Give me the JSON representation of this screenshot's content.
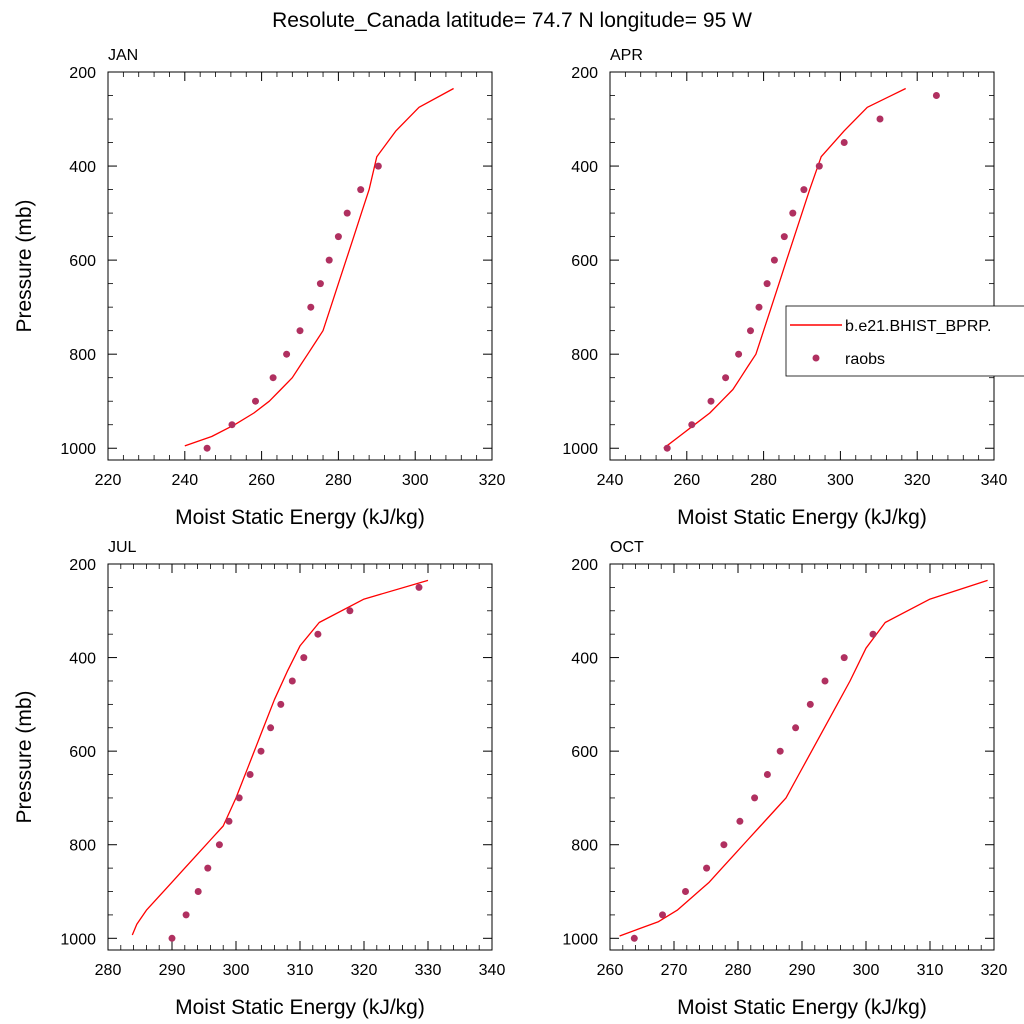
{
  "figure": {
    "title": "Resolute_Canada  latitude= 74.7 N longitude= 95 W"
  },
  "legend": {
    "entries": [
      {
        "label": "b.e21.BHIST_BPRP.",
        "kind": "line",
        "color": "#ff0000"
      },
      {
        "label": "raobs",
        "kind": "marker",
        "color": "#b03060"
      }
    ]
  },
  "colors": {
    "model_line": "#ff0000",
    "raobs_marker": "#b03060",
    "axis": "#000000"
  },
  "chart_data": [
    {
      "type": "line",
      "title": "JAN",
      "xlabel": "Moist Static Energy (kJ/kg)",
      "ylabel": "Pressure (mb)",
      "xlim": [
        220,
        320
      ],
      "ylim": [
        1025,
        200
      ],
      "xticks": [
        220,
        240,
        260,
        280,
        300,
        320
      ],
      "yticks": [
        200,
        400,
        600,
        800,
        1000
      ],
      "grid": false,
      "series": [
        {
          "name": "b.e21.BHIST_BPRP.",
          "kind": "line",
          "x": [
            240,
            247,
            253,
            258,
            262,
            265,
            268,
            270,
            272,
            274,
            276,
            278,
            280,
            282,
            284,
            286,
            288,
            290,
            295,
            301,
            310
          ],
          "y": [
            995,
            975,
            950,
            925,
            900,
            875,
            850,
            825,
            800,
            775,
            750,
            700,
            650,
            600,
            550,
            500,
            450,
            380,
            325,
            275,
            235
          ]
        },
        {
          "name": "raobs",
          "kind": "scatter",
          "x": [
            245.8,
            252.3,
            258.4,
            263,
            266.5,
            270,
            272.8,
            275.3,
            277.6,
            280,
            282.3,
            285.8,
            290.4
          ],
          "y": [
            1000,
            950,
            900,
            850,
            800,
            750,
            700,
            650,
            600,
            550,
            500,
            450,
            400
          ]
        }
      ]
    },
    {
      "type": "line",
      "title": "APR",
      "xlabel": "Moist Static Energy (kJ/kg)",
      "ylabel": "",
      "xlim": [
        240,
        340
      ],
      "ylim": [
        1025,
        200
      ],
      "xticks": [
        240,
        260,
        280,
        300,
        320,
        340
      ],
      "yticks": [
        200,
        400,
        600,
        800,
        1000
      ],
      "grid": false,
      "series": [
        {
          "name": "b.e21.BHIST_BPRP.",
          "kind": "line",
          "x": [
            254,
            258,
            262,
            266,
            269,
            272,
            274,
            276,
            278,
            280,
            282,
            284,
            286,
            288,
            290,
            292,
            295,
            301,
            307,
            317
          ],
          "y": [
            1000,
            975,
            950,
            925,
            900,
            875,
            850,
            825,
            800,
            750,
            700,
            650,
            600,
            550,
            500,
            450,
            380,
            325,
            275,
            235
          ]
        },
        {
          "name": "raobs",
          "kind": "scatter",
          "x": [
            254.9,
            261.3,
            266.3,
            270.1,
            273.5,
            276.6,
            278.8,
            280.9,
            282.8,
            285.4,
            287.6,
            290.5,
            294.5,
            301,
            310.3,
            325
          ],
          "y": [
            1000,
            950,
            900,
            850,
            800,
            750,
            700,
            650,
            600,
            550,
            500,
            450,
            400,
            350,
            300,
            250
          ]
        }
      ]
    },
    {
      "type": "line",
      "title": "JUL",
      "xlabel": "Moist Static Energy (kJ/kg)",
      "ylabel": "Pressure (mb)",
      "xlim": [
        280,
        340
      ],
      "ylim": [
        1025,
        200
      ],
      "xticks": [
        280,
        290,
        300,
        310,
        320,
        330,
        340
      ],
      "yticks": [
        200,
        400,
        600,
        800,
        1000
      ],
      "grid": false,
      "series": [
        {
          "name": "b.e21.BHIST_BPRP.",
          "kind": "line",
          "x": [
            283.8,
            284.5,
            286,
            288,
            290,
            292,
            294,
            296,
            298,
            300,
            302,
            304,
            306,
            308,
            310,
            313,
            320,
            330
          ],
          "y": [
            993,
            970,
            940,
            910,
            880,
            850,
            820,
            790,
            760,
            700,
            630,
            560,
            490,
            430,
            375,
            325,
            275,
            235
          ]
        },
        {
          "name": "raobs",
          "kind": "scatter",
          "x": [
            290,
            292.2,
            294.1,
            295.6,
            297.4,
            298.9,
            300.5,
            302.2,
            303.9,
            305.4,
            307,
            308.8,
            310.6,
            312.8,
            317.8,
            328.6
          ],
          "y": [
            1000,
            950,
            900,
            850,
            800,
            750,
            700,
            650,
            600,
            550,
            500,
            450,
            400,
            350,
            300,
            250
          ]
        }
      ]
    },
    {
      "type": "line",
      "title": "OCT",
      "xlabel": "Moist Static Energy (kJ/kg)",
      "ylabel": "",
      "xlim": [
        260,
        320
      ],
      "ylim": [
        1025,
        200
      ],
      "xticks": [
        260,
        270,
        280,
        290,
        300,
        310,
        320
      ],
      "yticks": [
        200,
        400,
        600,
        800,
        1000
      ],
      "grid": false,
      "series": [
        {
          "name": "b.e21.BHIST_BPRP.",
          "kind": "line",
          "x": [
            261.5,
            264.5,
            267.5,
            270.5,
            273,
            275.5,
            277.5,
            279.5,
            281.5,
            283.5,
            285.5,
            287.5,
            289.5,
            291.5,
            293.5,
            295.5,
            297.5,
            300,
            303,
            310,
            319
          ],
          "y": [
            995,
            980,
            965,
            940,
            910,
            880,
            850,
            820,
            790,
            760,
            730,
            700,
            650,
            600,
            550,
            500,
            450,
            380,
            325,
            275,
            235
          ]
        },
        {
          "name": "raobs",
          "kind": "scatter",
          "x": [
            263.8,
            268.2,
            271.8,
            275.1,
            277.8,
            280.3,
            282.6,
            284.6,
            286.6,
            289,
            291.3,
            293.6,
            296.6,
            301.1
          ],
          "y": [
            1000,
            950,
            900,
            850,
            800,
            750,
            700,
            650,
            600,
            550,
            500,
            450,
            400,
            350
          ]
        }
      ]
    }
  ]
}
